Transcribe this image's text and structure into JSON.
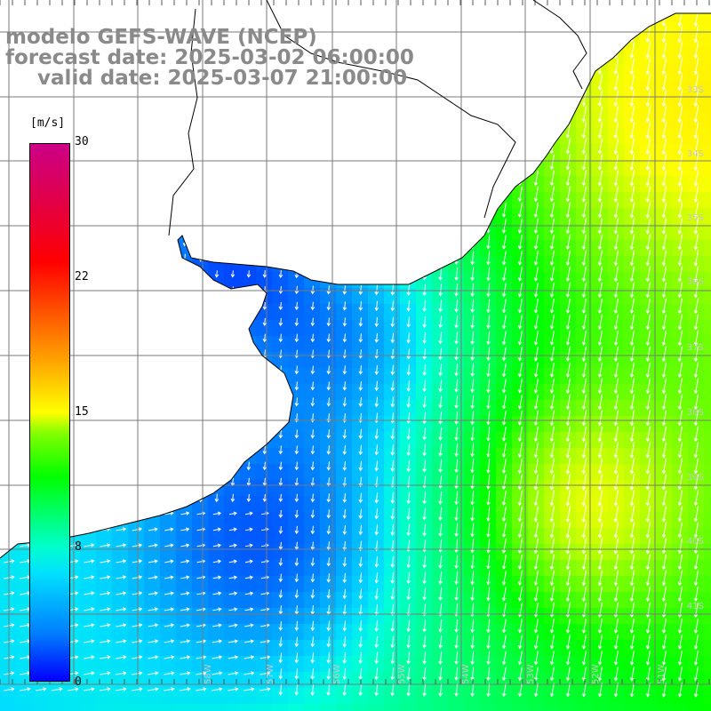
{
  "titles": {
    "line1": "modelo GEFS-WAVE (NCEP)",
    "line2": "forecast date: 2025-03-02 06:00:00",
    "line3": "valid date: 2025-03-07 21:00:00"
  },
  "colorbar": {
    "unit": "[m/s]",
    "ticks": [
      "30",
      "22",
      "15",
      "8",
      "0"
    ],
    "tick_values": [
      30,
      22,
      15,
      8,
      0
    ],
    "range": [
      0,
      30
    ],
    "colors": [
      "#0000ff",
      "#00e0ff",
      "#00ff00",
      "#ffff00",
      "#ff0000",
      "#cc0088"
    ]
  },
  "grid": {
    "lat_labels": [
      "33S",
      "34S",
      "35S",
      "36S",
      "37S",
      "38S",
      "39S",
      "40S",
      "41S"
    ],
    "lon_labels": [
      "58W",
      "57W",
      "56W",
      "55W",
      "54W",
      "53W",
      "52W",
      "51W"
    ],
    "gridline_color": "#7a7a7a"
  },
  "colors": {
    "land": "#ffffff",
    "coast": "#000000",
    "arrow": "#ffffff"
  }
}
